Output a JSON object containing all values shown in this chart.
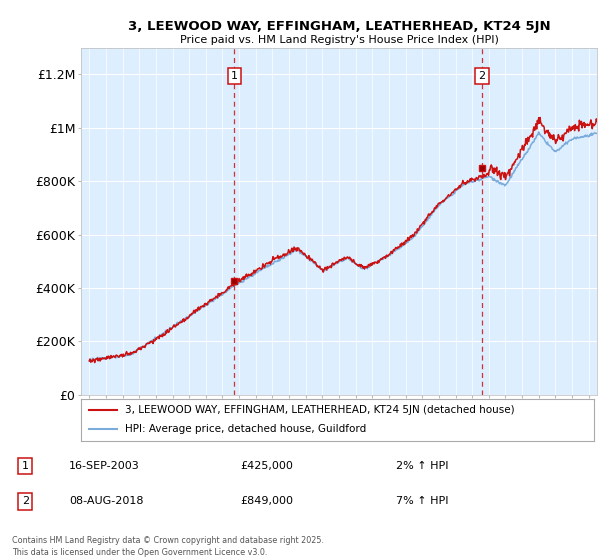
{
  "title_line1": "3, LEEWOOD WAY, EFFINGHAM, LEATHERHEAD, KT24 5JN",
  "title_line2": "Price paid vs. HM Land Registry's House Price Index (HPI)",
  "hpi_color": "#7aabdb",
  "price_color": "#cc1111",
  "bg_color": "#ddeeff",
  "annotation1": {
    "label": "1",
    "date": "16-SEP-2003",
    "price": 425000,
    "hpi_diff": "2% ↑ HPI",
    "x_year": 2003.72
  },
  "annotation2": {
    "label": "2",
    "date": "08-AUG-2018",
    "price": 849000,
    "hpi_diff": "7% ↑ HPI",
    "x_year": 2018.6
  },
  "legend_line1": "3, LEEWOOD WAY, EFFINGHAM, LEATHERHEAD, KT24 5JN (detached house)",
  "legend_line2": "HPI: Average price, detached house, Guildford",
  "footnote": "Contains HM Land Registry data © Crown copyright and database right 2025.\nThis data is licensed under the Open Government Licence v3.0.",
  "ylim": [
    0,
    1300000
  ],
  "xlim_start": 1994.5,
  "xlim_end": 2025.5,
  "yticks": [
    0,
    200000,
    400000,
    600000,
    800000,
    1000000,
    1200000
  ],
  "ytick_labels": [
    "£0",
    "£200K",
    "£400K",
    "£600K",
    "£800K",
    "£1M",
    "£1.2M"
  ]
}
